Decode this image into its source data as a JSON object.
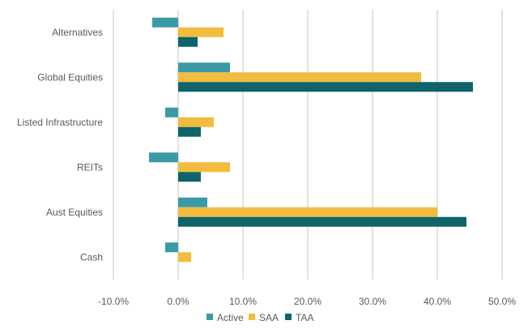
{
  "chart_data": {
    "type": "bar",
    "orientation": "horizontal",
    "categories": [
      "Alternatives",
      "Global Equities",
      "Listed Infrastructure",
      "REITs",
      "Aust Equities",
      "Cash"
    ],
    "series": [
      {
        "name": "Active",
        "color": "#3A9AA5",
        "values": [
          -4.0,
          8.0,
          -2.0,
          -4.5,
          4.5,
          -2.0
        ]
      },
      {
        "name": "SAA",
        "color": "#F2BC3F",
        "values": [
          7.0,
          37.5,
          5.5,
          8.0,
          40.0,
          2.0
        ]
      },
      {
        "name": "TAA",
        "color": "#0E6468",
        "values": [
          3.0,
          45.5,
          3.5,
          3.5,
          44.5,
          0.0
        ]
      }
    ],
    "xlim": [
      -10,
      50
    ],
    "xticks": [
      -10,
      0,
      10,
      20,
      30,
      40,
      50
    ],
    "tick_labels": [
      "-10.0%",
      "0.0%",
      "10.0%",
      "20.0%",
      "30.0%",
      "40.0%",
      "50.0%"
    ],
    "grid": true,
    "legend_position": "bottom"
  }
}
